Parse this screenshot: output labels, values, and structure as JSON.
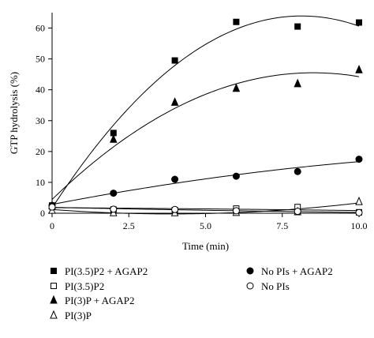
{
  "chart_data": {
    "type": "scatter",
    "xlabel": "Time (min)",
    "ylabel": "GTP hydrolysis (%)",
    "xlim": [
      0,
      10
    ],
    "ylim": [
      0,
      65
    ],
    "xticks": [
      0,
      2.5,
      5.0,
      7.5,
      10.0
    ],
    "xtick_labels": [
      "0",
      "2.5",
      "5.0",
      "7.5",
      "10.0"
    ],
    "yticks": [
      0,
      10,
      20,
      30,
      40,
      50,
      60
    ],
    "ytick_labels": [
      "0",
      "10",
      "20",
      "30",
      "40",
      "50",
      "60"
    ],
    "grid": false,
    "legend_position": "bottom",
    "series": [
      {
        "name": "PI(3.5)P2 + AGAP2",
        "marker": "square-filled",
        "x": [
          0,
          2,
          4,
          6,
          8,
          10
        ],
        "y": [
          2.5,
          26,
          49.5,
          62,
          60.5,
          61.8
        ],
        "fit": "quadratic"
      },
      {
        "name": "PI(3.5)P2",
        "marker": "square-open",
        "x": [
          0,
          2,
          4,
          6,
          8,
          10
        ],
        "y": [
          2.2,
          1.2,
          1.0,
          1.5,
          2.0,
          0.3
        ],
        "fit": "quadratic"
      },
      {
        "name": "PI(3)P + AGAP2",
        "marker": "triangle-filled",
        "x": [
          0,
          2,
          4,
          6,
          8,
          10
        ],
        "y": [
          2.5,
          24,
          36,
          40.5,
          42,
          46.5
        ],
        "fit": "quadratic"
      },
      {
        "name": "PI(3)P",
        "marker": "triangle-open",
        "x": [
          0,
          2,
          4,
          6,
          8,
          10
        ],
        "y": [
          1.0,
          0.2,
          0.2,
          0.3,
          0.5,
          3.8
        ],
        "fit": "quadratic"
      },
      {
        "name": "No PIs + AGAP2",
        "marker": "circle-filled",
        "x": [
          0,
          2,
          4,
          6,
          8,
          10
        ],
        "y": [
          2.5,
          6.5,
          11,
          12,
          13.5,
          17.5
        ],
        "fit": "quadratic"
      },
      {
        "name": "No PIs",
        "marker": "circle-open",
        "x": [
          0,
          2,
          4,
          6,
          8,
          10
        ],
        "y": [
          2.0,
          1.3,
          1.2,
          0.8,
          0.6,
          0.2
        ],
        "fit": "quadratic"
      }
    ]
  }
}
